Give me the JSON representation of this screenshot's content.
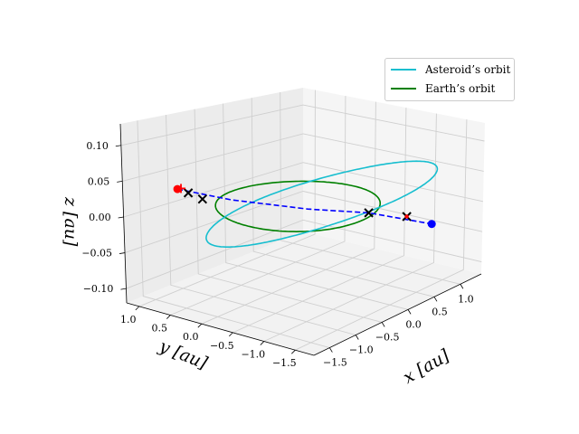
{
  "chart_data": {
    "type": "line3d",
    "title": "",
    "xlabel": "x [au]",
    "ylabel": "y [au]",
    "zlabel": "z [au]",
    "xlim": [
      -1.8,
      1.4
    ],
    "ylim": [
      -1.8,
      1.2
    ],
    "zlim": [
      -0.12,
      0.13
    ],
    "x_ticks": [
      -1.5,
      -1.0,
      -0.5,
      0.0,
      0.5,
      1.0
    ],
    "x_tick_labels": [
      "−1.5",
      "−1.0",
      "−0.5",
      "0.0",
      "0.5",
      "1.0"
    ],
    "y_ticks": [
      1.0,
      0.5,
      0.0,
      -0.5,
      -1.0,
      -1.5
    ],
    "y_tick_labels": [
      "1.0",
      "0.5",
      "0.0",
      "−0.5",
      "−1.0",
      "−1.5"
    ],
    "z_ticks": [
      0.1,
      0.05,
      0.0,
      -0.05,
      -0.1
    ],
    "z_tick_labels": [
      "0.10",
      "0.05",
      "0.00",
      "−0.05",
      "−0.10"
    ],
    "grid": true,
    "legend_position": "top-right",
    "series": [
      {
        "name": "Asteroid’s orbit",
        "color": "#17becf",
        "kind": "ellipse",
        "a": 1.45,
        "e": 0.3,
        "inclination_deg": 6,
        "node_deg": 160,
        "peri_deg": 20
      },
      {
        "name": "Earth’s orbit",
        "color": "#008000",
        "kind": "circle",
        "radius": 1.0
      }
    ],
    "markers": [
      {
        "name": "asteroid-start",
        "type": "dot",
        "color": "#ff0000",
        "x": -1.0,
        "y": 1.05,
        "z": 0.025
      },
      {
        "name": "asteroid-end",
        "type": "dot",
        "color": "#0000ff",
        "x": 0.95,
        "y": -1.35,
        "z": -0.03
      },
      {
        "name": "cross-1",
        "type": "x",
        "color": "#000000",
        "x": -0.92,
        "y": 0.95,
        "z": 0.02
      },
      {
        "name": "cross-2",
        "type": "x",
        "color": "#000000",
        "x": -0.78,
        "y": 0.85,
        "z": 0.01
      },
      {
        "name": "cross-3",
        "type": "x",
        "color": "#000000",
        "x": 0.45,
        "y": -0.75,
        "z": -0.008
      },
      {
        "name": "cross-4",
        "type": "x",
        "color": "#000000",
        "x": 0.82,
        "y": -1.05,
        "z": -0.02
      },
      {
        "name": "plus-start",
        "type": "plus",
        "color": "#ff0000",
        "x": -0.97,
        "y": 1.02,
        "z": 0.026
      },
      {
        "name": "dot-near-cross4",
        "type": "smalldot",
        "color": "#ff0000",
        "x": 0.82,
        "y": -1.05,
        "z": -0.02
      }
    ],
    "path": {
      "name": "transfer-path",
      "color": "#0000ff",
      "style": "dashed",
      "points": [
        [
          -1.0,
          1.05,
          0.025
        ],
        [
          -0.6,
          0.55,
          0.012
        ],
        [
          0.0,
          -0.15,
          -0.002
        ],
        [
          0.45,
          -0.75,
          -0.008
        ],
        [
          0.95,
          -1.35,
          -0.03
        ]
      ]
    }
  }
}
